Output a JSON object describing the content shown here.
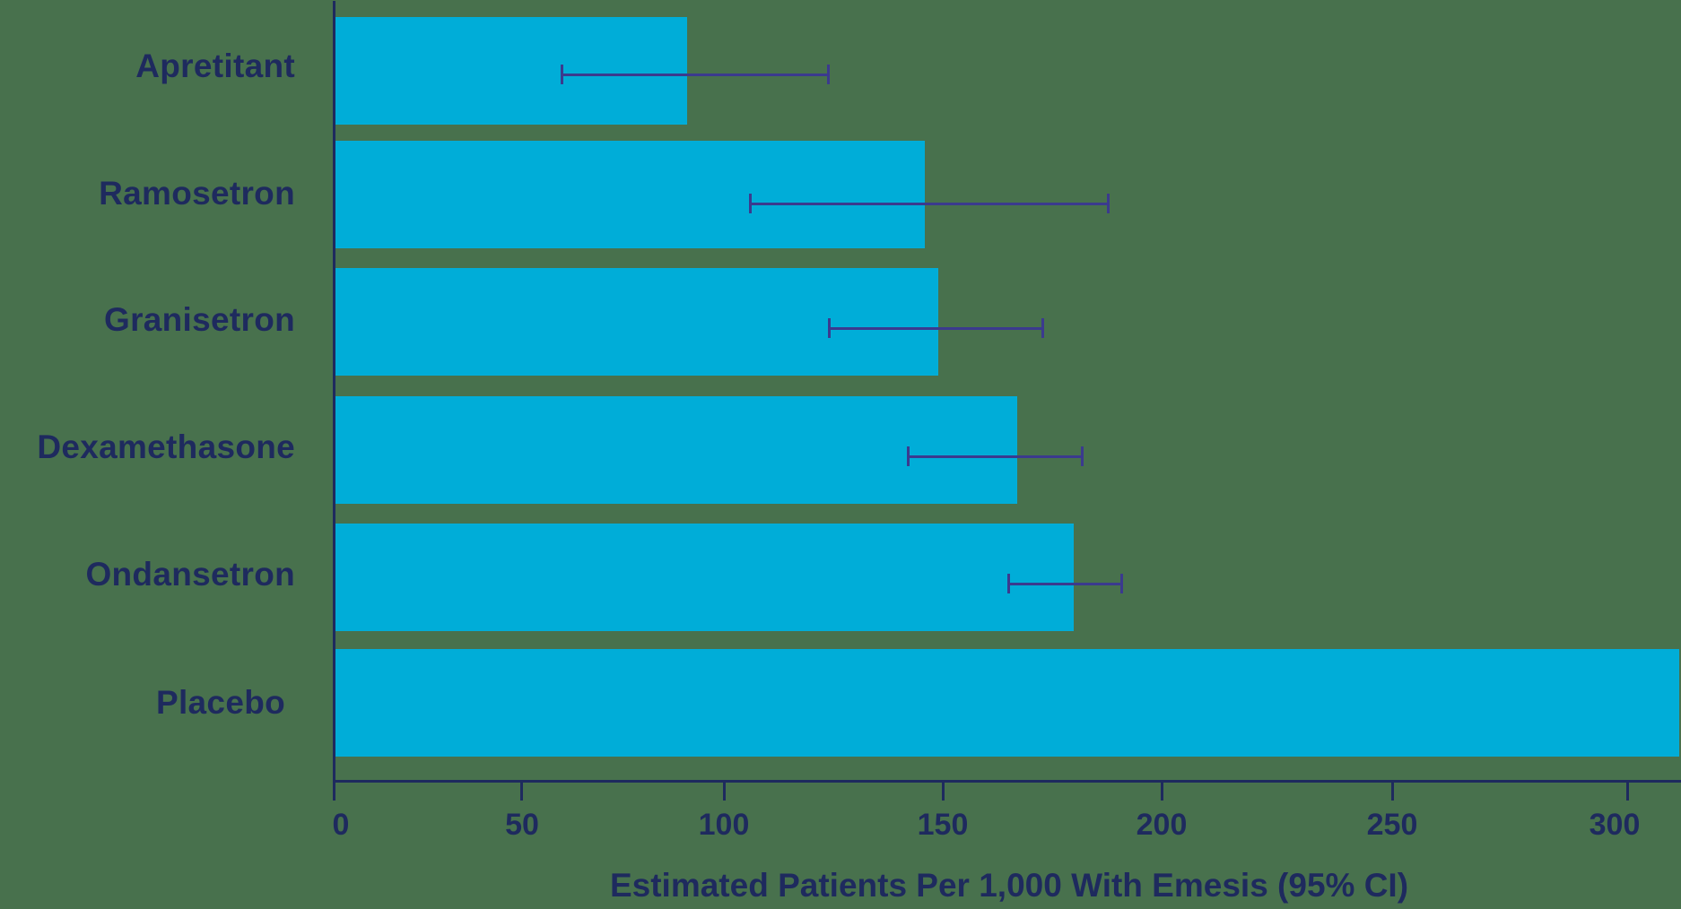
{
  "colors": {
    "background": "#48714D",
    "bar": "#00ADD8",
    "axis": "#1E2A5E",
    "text": "#1E2A5E",
    "error_bar": "#3B3A8E"
  },
  "chart": {
    "x_axis_title": "Estimated Patients Per 1,000 With Emesis (95% CI)",
    "ticks": [
      "0",
      "50",
      "100",
      "150",
      "200",
      "250",
      "300"
    ],
    "categories": [
      "Apretitant",
      "Ramosetron",
      "Granisetron",
      "Dexamethasone",
      "Ondansetron",
      "Placebo"
    ]
  },
  "chart_data": {
    "type": "bar",
    "orientation": "horizontal",
    "title": "",
    "xlabel": "Estimated Patients Per 1,000 With Emesis (95% CI)",
    "ylabel": "",
    "categories": [
      "Apretitant",
      "Ramosetron",
      "Granisetron",
      "Dexamethasone",
      "Ondansetron",
      "Placebo"
    ],
    "values": [
      91,
      146,
      149,
      167,
      180,
      311
    ],
    "ci_low": [
      60,
      106,
      124,
      142,
      165,
      null
    ],
    "ci_high": [
      124,
      188,
      173,
      182,
      191,
      null
    ],
    "xticks": [
      0,
      50,
      100,
      150,
      200,
      250,
      300
    ],
    "xlim": [
      0,
      311
    ],
    "grid": false,
    "legend": null
  }
}
